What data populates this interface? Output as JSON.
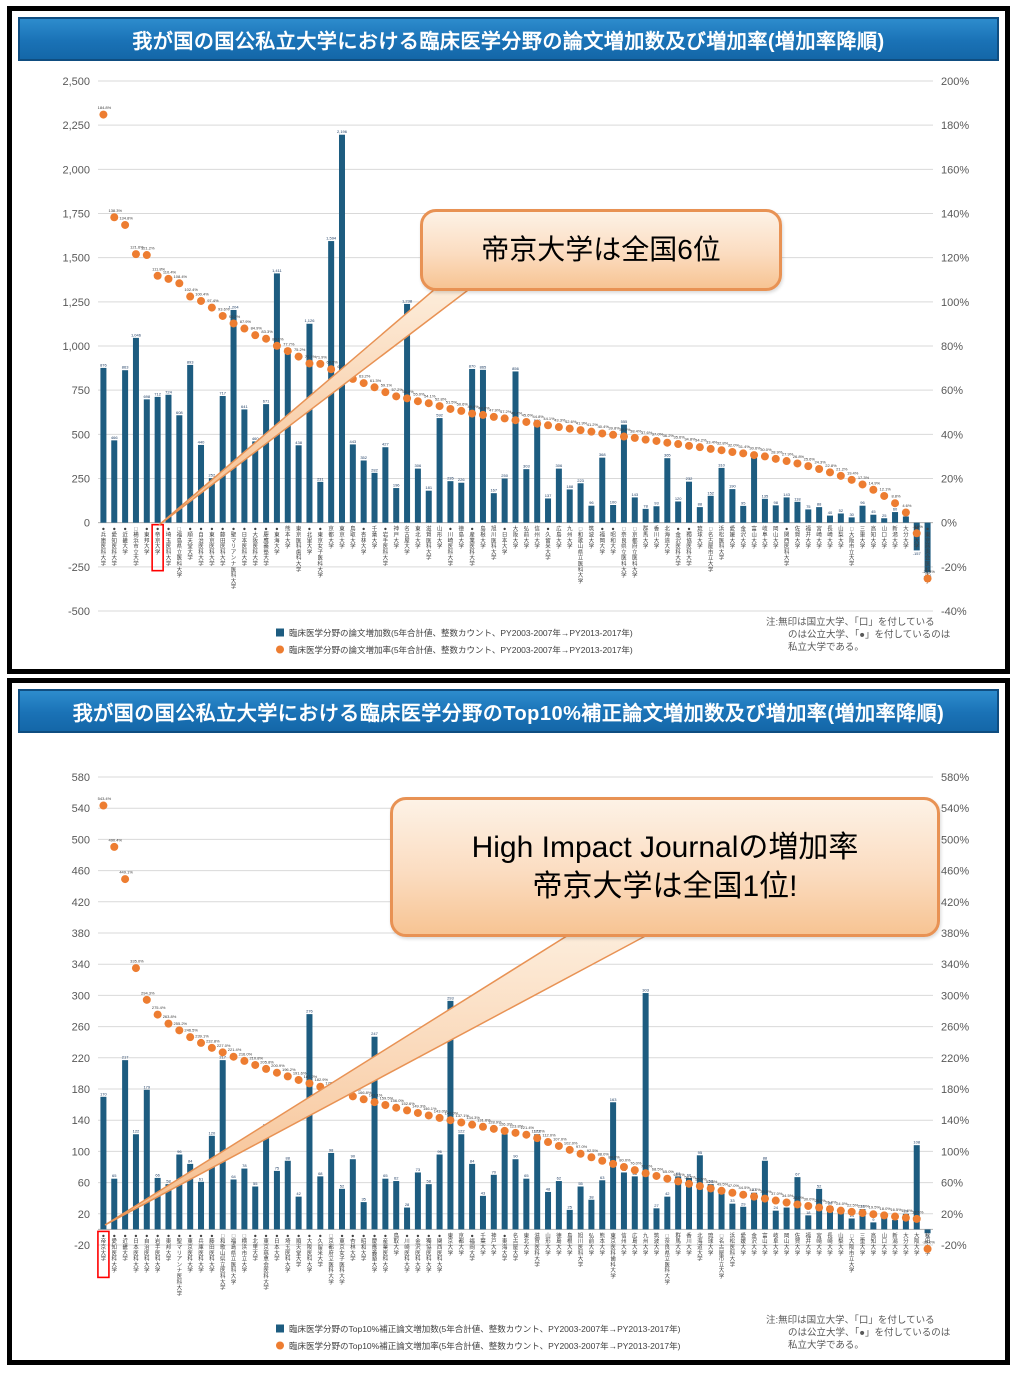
{
  "note_lines": [
    "注:無印は国立大学、「口」を付している",
    "のは公立大学、「●」を付しているのは",
    "私立大学である。"
  ],
  "colors": {
    "bar": "#1d5c80",
    "dot": "#ed7d31",
    "grid": "#d9d9d9",
    "axis_text": "#595959",
    "title_bg": "#1a72b6",
    "highlight_box": "#ff0000",
    "callout_border": "#e89254"
  },
  "chart_data": [
    {
      "type": "bar",
      "title": "我が国の国公私立大学における臨床医学分野の論文増加数及び増加率(増加率降順)",
      "callout": {
        "lines": [
          "帝京大学は全国6位"
        ]
      },
      "highlight_index": 5,
      "left_axis": {
        "min": -500,
        "max": 2500,
        "ticks": [
          "2,500",
          "2,250",
          "2,000",
          "1,750",
          "1,500",
          "1,250",
          "1,000",
          "750",
          "500",
          "250",
          "0",
          "-250",
          "-500"
        ]
      },
      "right_axis": {
        "min": -40,
        "max": 200,
        "ticks": [
          "200%",
          "180%",
          "160%",
          "140%",
          "120%",
          "100%",
          "80%",
          "60%",
          "40%",
          "20%",
          "0%",
          "-20%",
          "-40%"
        ]
      },
      "legend_position": "bottom",
      "grid": true,
      "categories": [
        "●兵庫医科大学",
        "●愛知医科大学",
        "●近畿大学",
        "□横浜市立大学",
        "●東邦大学",
        "●帝京大学",
        "●埼玉医科大学",
        "□福島県立医科大学",
        "●順天堂大学",
        "●自治医科大学",
        "●東京医科大学",
        "●藤田医科大学",
        "●聖マリアンナ医科大学",
        "●日本医科大学",
        "●大阪医科大学",
        "●慶應義塾大学",
        "●東海大学",
        "熊本大学",
        "東京医科歯科大学",
        "●北里大学",
        "●東京女子医科大学",
        "京都大学",
        "東京大学",
        "鳥取大学",
        "●杏林大学",
        "千葉大学",
        "●岩手医科大学",
        "神戸大学",
        "名古屋大学",
        "東北大学",
        "滋賀医科大学",
        "山形大学",
        "●川崎医科大学",
        "徳島大学",
        "●産業医科大学",
        "島根大学",
        "旭川医科大学",
        "●日本大学",
        "大阪大学",
        "弘前大学",
        "信州大学",
        "●久留米大学",
        "広島大学",
        "九州大学",
        "□和歌山県立医科大学",
        "筑波大学",
        "●福岡大学",
        "●昭和大学",
        "□奈良県立医科大学",
        "□京都府立医科大学",
        "群馬大学",
        "香川大学",
        "北海道大学",
        "●金沢医科大学",
        "●獨協医科大学",
        "琉球大学",
        "□名古屋市立大学",
        "浜松医科大学",
        "愛媛大学",
        "金沢大学",
        "富山大学",
        "岐阜大学",
        "岡山大学",
        "●関西医科大学",
        "佐賀大学",
        "福井大学",
        "宮崎大学",
        "長崎大学",
        "山梨大学",
        "□大阪市立大学",
        "三重大学",
        "高知大学",
        "山口大学",
        "新潟大学",
        "大分大学",
        "秋田大学",
        "●東京慈恵会医科大学"
      ],
      "series": [
        {
          "name": "臨床医学分野の論文増加数(5年合計値、整数カウント、PY2003-2007年→PY2013-2017年)",
          "type": "bar",
          "axis": "left",
          "color": "#1d5c80",
          "values": [
            876,
            466,
            863,
            1046,
            698,
            712,
            724,
            608,
            893,
            440,
            252,
            717,
            1204,
            641,
            460,
            671,
            1411,
            965,
            438,
            1126,
            231,
            1594,
            2196,
            443,
            352,
            282,
            427,
            196,
            1238,
            306,
            181,
            592,
            235,
            226,
            870,
            865,
            167,
            250,
            856,
            303,
            560,
            137,
            306,
            188,
            223,
            96,
            368,
            100,
            555,
            143,
            78,
            93,
            365,
            120,
            232,
            88,
            152,
            310,
            190,
            95,
            368,
            135,
            98,
            143,
            118,
            75,
            88,
            40,
            52,
            30,
            96,
            45,
            25,
            60,
            35,
            -157,
            -281
          ]
        },
        {
          "name": "臨床医学分野の論文増加率(5年合計値、整数カウント、PY2003-2007年→PY2013-2017年)",
          "type": "dot",
          "axis": "right",
          "color": "#ed7d31",
          "values": [
            184.8,
            138.3,
            134.8,
            121.6,
            121.2,
            111.8,
            110.4,
            108.4,
            102.4,
            100.4,
            97.4,
            93.6,
            90.2,
            87.9,
            84.9,
            83.3,
            80.1,
            77.7,
            75.2,
            72.1,
            71.9,
            69.5,
            67.5,
            65.1,
            63.2,
            61.3,
            59.1,
            57.2,
            56.3,
            55.0,
            54.1,
            52.8,
            51.5,
            50.6,
            49.4,
            48.8,
            47.9,
            47.2,
            46.4,
            45.6,
            44.8,
            44.1,
            43.3,
            42.6,
            41.9,
            41.2,
            40.4,
            39.8,
            39.0,
            38.4,
            37.6,
            37.0,
            36.2,
            35.6,
            34.8,
            34.2,
            33.4,
            32.8,
            32.0,
            31.4,
            30.6,
            30.0,
            28.9,
            27.9,
            26.8,
            25.6,
            24.3,
            22.8,
            21.2,
            19.4,
            17.3,
            14.9,
            12.1,
            8.8,
            4.6,
            -4.8,
            -25.3
          ]
        }
      ]
    },
    {
      "type": "bar",
      "title": "我が国の国公私立大学における臨床医学分野のTop10%補正論文増加数及び増加率(増加率降順)",
      "callout": {
        "lines": [
          "High Impact Journalの増加率",
          "帝京大学は全国1位!"
        ]
      },
      "highlight_index": 0,
      "left_axis": {
        "min": -20,
        "max": 580,
        "ticks": [
          "580",
          "540",
          "500",
          "460",
          "420",
          "380",
          "340",
          "300",
          "260",
          "220",
          "180",
          "140",
          "100",
          "60",
          "20",
          "-20"
        ]
      },
      "right_axis": {
        "min": -20,
        "max": 580,
        "ticks": [
          "580%",
          "540%",
          "500%",
          "460%",
          "420%",
          "380%",
          "340%",
          "300%",
          "260%",
          "220%",
          "180%",
          "140%",
          "100%",
          "60%",
          "20%",
          "-20%"
        ]
      },
      "legend_position": "bottom",
      "grid": true,
      "categories": [
        "●帝京大学",
        "●愛知医科大学",
        "●近畿大学",
        "●日本医科大学",
        "●自治医科大学",
        "●岩手医科大学",
        "●東邦大学",
        "●聖マリアンナ医科大学",
        "●東京医科大学",
        "●兵庫医科大学",
        "●藤田医科大学",
        "□和歌山県立医科大学",
        "□福島県立医科大学",
        "□横浜市立大学",
        "●北里大学",
        "●東京慈恵会医科大学",
        "●日本大学",
        "●埼玉医科大学",
        "●順天堂大学",
        "●大阪医科大学",
        "●久留米大学",
        "□京都府立医科大学",
        "●東京女子医科大学",
        "●杏林大学",
        "●昭和大学",
        "●慶應義塾大学",
        "●産業医科大学",
        "鳥取大学",
        "●川崎医科大学",
        "●金沢医科大学",
        "●獨協医科大学",
        "●関西医科大学",
        "東京大学",
        "京都大学",
        "●福岡大学",
        "千葉大学",
        "神戸大学",
        "●東海大学",
        "名古屋大学",
        "東北大学",
        "滋賀医科大学",
        "山形大学",
        "徳島大学",
        "島根大学",
        "旭川医科大学",
        "弘前大学",
        "熊本大学",
        "東京医科歯科大学",
        "信州大学",
        "広島大学",
        "九州大学",
        "筑波大学",
        "□奈良県立医科大学",
        "群馬大学",
        "香川大学",
        "北海道大学",
        "琉球大学",
        "□名古屋市立大学",
        "浜松医科大学",
        "愛媛大学",
        "金沢大学",
        "富山大学",
        "岐阜大学",
        "岡山大学",
        "佐賀大学",
        "福井大学",
        "宮崎大学",
        "長崎大学",
        "山梨大学",
        "□大阪市立大学",
        "三重大学",
        "高知大学",
        "山口大学",
        "新潟大学",
        "大分大学",
        "大阪大学",
        "秋田大学"
      ],
      "series": [
        {
          "name": "臨床医学分野のTop10%補正論文増加数(5年合計値、整数カウント、PY2003-2007年→PY2013-2017年)",
          "type": "bar",
          "axis": "left",
          "color": "#1d5c80",
          "values": [
            170,
            65,
            217,
            122,
            179,
            66,
            58,
            96,
            84,
            61,
            120,
            217,
            64,
            78,
            55,
            130,
            75,
            88,
            42,
            276,
            68,
            98,
            52,
            90,
            35,
            247,
            65,
            62,
            28,
            73,
            58,
            96,
            293,
            122,
            84,
            43,
            70,
            122,
            90,
            65,
            122,
            48,
            62,
            25,
            55,
            38,
            63,
            163,
            73,
            68,
            303,
            27,
            42,
            68,
            66,
            95,
            58,
            48,
            33,
            29,
            47,
            88,
            24,
            28,
            67,
            18,
            52,
            30,
            22,
            14,
            26,
            9,
            17,
            12,
            20,
            108,
            -5
          ]
        },
        {
          "name": "臨床医学分野のTop10%補正論文増加率(5年合計値、整数カウント、PY2003-2007年→PY2013-2017年)",
          "type": "dot",
          "axis": "right",
          "color": "#ed7d31",
          "values": [
            543.4,
            490.4,
            449.1,
            335.0,
            294.3,
            275.4,
            263.8,
            255.2,
            246.5,
            239.1,
            232.8,
            227.0,
            221.4,
            216.0,
            210.8,
            205.8,
            200.9,
            196.2,
            191.6,
            187.2,
            182.9,
            178.7,
            174.6,
            170.6,
            166.8,
            163.1,
            159.5,
            156.0,
            152.6,
            149.3,
            146.1,
            143.0,
            140.0,
            137.1,
            134.3,
            131.6,
            128.9,
            126.3,
            123.8,
            121.4,
            117.0,
            112.0,
            107.0,
            102.0,
            97.0,
            92.5,
            88.0,
            84.0,
            80.0,
            76.0,
            72.0,
            68.5,
            65.0,
            61.5,
            58.5,
            55.5,
            52.5,
            49.5,
            47.0,
            44.5,
            42.0,
            39.5,
            37.0,
            34.5,
            32.0,
            30.0,
            28.0,
            26.0,
            24.0,
            22.5,
            21.0,
            19.5,
            18.0,
            16.5,
            15.0,
            13.5,
            -25.0
          ]
        }
      ]
    }
  ]
}
